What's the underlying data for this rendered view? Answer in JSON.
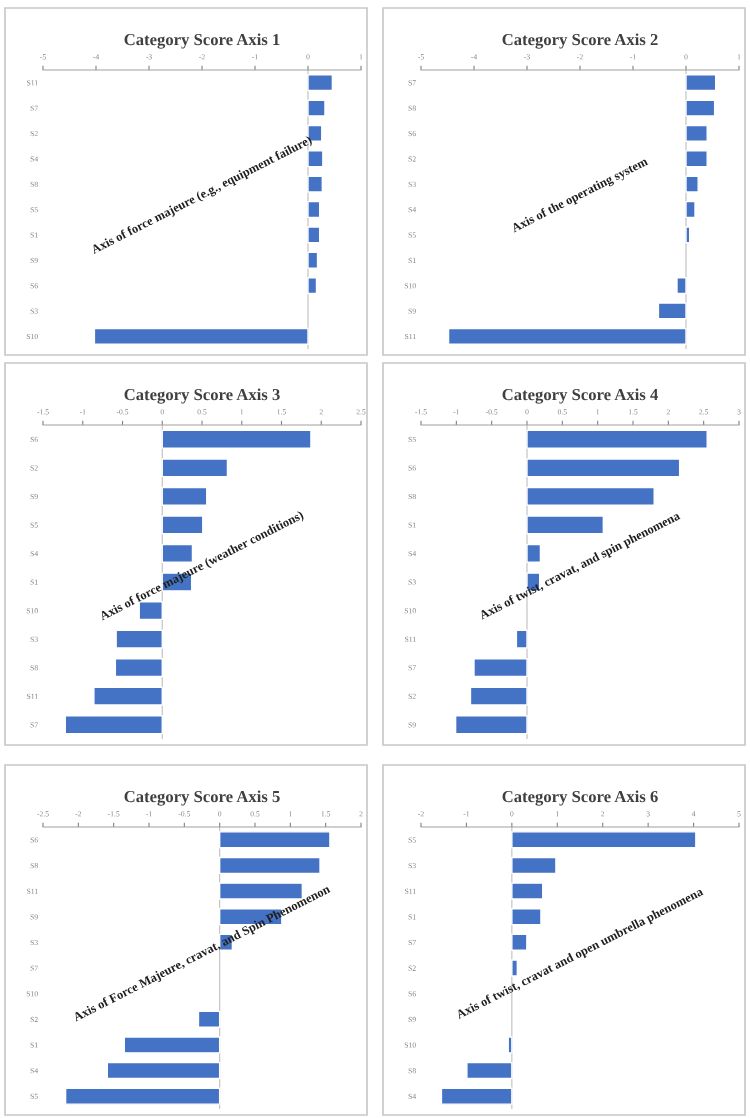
{
  "chart_data": [
    {
      "type": "bar",
      "orientation": "horizontal",
      "title": "Category Score Axis 1",
      "categories": [
        "S11",
        "S7",
        "S2",
        "S4",
        "S8",
        "S5",
        "S1",
        "S9",
        "S6",
        "S3",
        "S10"
      ],
      "values": [
        0.46,
        0.32,
        0.26,
        0.28,
        0.27,
        0.22,
        0.22,
        0.18,
        0.16,
        null,
        -4.03
      ],
      "color": "#4472c4",
      "xlim": [
        -5,
        1
      ],
      "xticks": [
        -5,
        -4,
        -3,
        -2,
        -1,
        0,
        1
      ],
      "annotations": [
        "Axis of force majeure (e.g., equipment failure)"
      ]
    },
    {
      "type": "bar",
      "orientation": "horizontal",
      "title": "Category Score Axis 2",
      "categories": [
        "S7",
        "S8",
        "S6",
        "S2",
        "S3",
        "S4",
        "S5",
        "S1",
        "S10",
        "S9",
        "S11"
      ],
      "values": [
        0.56,
        0.54,
        0.4,
        0.4,
        0.23,
        0.17,
        0.07,
        null,
        -0.17,
        -0.52,
        -4.48
      ],
      "color": "#4472c4",
      "xlim": [
        -5,
        1
      ],
      "xticks": [
        -5,
        -4,
        -3,
        -2,
        -1,
        0,
        1
      ],
      "annotations": [
        "Axis of the operating system"
      ]
    },
    {
      "type": "bar",
      "orientation": "horizontal",
      "title": "Category Score Axis 3",
      "categories": [
        "S6",
        "S2",
        "S9",
        "S5",
        "S4",
        "S1",
        "S10",
        "S3",
        "S8",
        "S11",
        "S7"
      ],
      "values": [
        1.87,
        0.82,
        0.56,
        0.51,
        0.38,
        0.37,
        -0.29,
        -0.58,
        -0.59,
        -0.86,
        -1.22
      ],
      "color": "#4472c4",
      "xlim": [
        -1.5,
        2.5
      ],
      "xticks": [
        -1.5,
        -1,
        -0.5,
        0,
        0.5,
        1,
        1.5,
        2,
        2.5
      ],
      "annotations": [
        "Axis of force majeure (weather conditions)"
      ]
    },
    {
      "type": "bar",
      "orientation": "horizontal",
      "title": "Category Score Axis 4",
      "categories": [
        "S5",
        "S6",
        "S8",
        "S1",
        "S4",
        "S3",
        "S10",
        "S11",
        "S7",
        "S2",
        "S9"
      ],
      "values": [
        2.55,
        2.16,
        1.8,
        1.08,
        0.19,
        0.18,
        null,
        -0.15,
        -0.75,
        -0.8,
        -1.01
      ],
      "color": "#4472c4",
      "xlim": [
        -1.5,
        3
      ],
      "xticks": [
        -1.5,
        -1,
        -0.5,
        0,
        0.5,
        1,
        1.5,
        2,
        2.5,
        3
      ],
      "annotations": [
        "Axis of twist, cravat, and spin phenomena"
      ]
    },
    {
      "type": "bar",
      "orientation": "horizontal",
      "title": "Category Score Axis 5",
      "categories": [
        "S6",
        "S8",
        "S11",
        "S9",
        "S3",
        "S7",
        "S10",
        "S2",
        "S1",
        "S4",
        "S5"
      ],
      "values": [
        1.56,
        1.42,
        1.17,
        0.88,
        0.18,
        null,
        null,
        -0.3,
        -1.35,
        -1.59,
        -2.18
      ],
      "color": "#4472c4",
      "xlim": [
        -2.5,
        2
      ],
      "xticks": [
        -2.5,
        -2,
        -1.5,
        -1,
        -0.5,
        0,
        0.5,
        1,
        1.5,
        2
      ],
      "annotations": [
        "Axis of Force Majeure, cravat, and Spin Phenomenon"
      ]
    },
    {
      "type": "bar",
      "orientation": "horizontal",
      "title": "Category Score Axis 6",
      "categories": [
        "S5",
        "S3",
        "S11",
        "S1",
        "S7",
        "S2",
        "S6",
        "S9",
        "S10",
        "S8",
        "S4"
      ],
      "values": [
        4.05,
        0.97,
        0.68,
        0.64,
        0.33,
        0.12,
        null,
        null,
        -0.08,
        -0.99,
        -1.55
      ],
      "color": "#4472c4",
      "xlim": [
        -2,
        5
      ],
      "xticks": [
        -2,
        -1,
        0,
        1,
        2,
        3,
        4,
        5
      ],
      "annotations": [
        "Axis of twist, cravat and open umbrella phenomena"
      ]
    }
  ]
}
